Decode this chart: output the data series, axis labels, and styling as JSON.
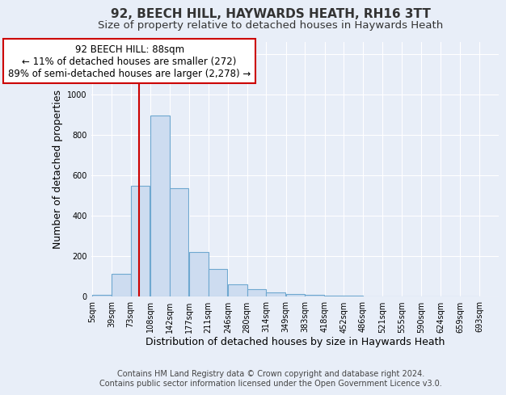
{
  "title": "92, BEECH HILL, HAYWARDS HEATH, RH16 3TT",
  "subtitle": "Size of property relative to detached houses in Haywards Heath",
  "xlabel": "Distribution of detached houses by size in Haywards Heath",
  "ylabel": "Number of detached properties",
  "footer_line1": "Contains HM Land Registry data © Crown copyright and database right 2024.",
  "footer_line2": "Contains public sector information licensed under the Open Government Licence v3.0.",
  "bin_labels": [
    "5sqm",
    "39sqm",
    "73sqm",
    "108sqm",
    "142sqm",
    "177sqm",
    "211sqm",
    "246sqm",
    "280sqm",
    "314sqm",
    "349sqm",
    "383sqm",
    "418sqm",
    "452sqm",
    "486sqm",
    "521sqm",
    "555sqm",
    "590sqm",
    "624sqm",
    "659sqm",
    "693sqm"
  ],
  "bin_edges": [
    5,
    39,
    73,
    108,
    142,
    177,
    211,
    246,
    280,
    314,
    349,
    383,
    418,
    452,
    486,
    521,
    555,
    590,
    624,
    659,
    693
  ],
  "bar_heights": [
    5,
    110,
    545,
    895,
    535,
    220,
    135,
    60,
    35,
    20,
    10,
    5,
    2,
    1,
    0,
    0,
    0,
    0,
    0,
    0
  ],
  "bar_color": "#cddcf0",
  "bar_edge_color": "#6fa8d0",
  "vline_x": 88,
  "vline_color": "#cc0000",
  "annotation_text": "92 BEECH HILL: 88sqm\n← 11% of detached houses are smaller (272)\n89% of semi-detached houses are larger (2,278) →",
  "annotation_box_edgecolor": "#cc0000",
  "ylim": [
    0,
    1260
  ],
  "yticks": [
    0,
    200,
    400,
    600,
    800,
    1000,
    1200
  ],
  "background_color": "#e8eef8",
  "grid_color": "#ffffff",
  "title_fontsize": 11,
  "subtitle_fontsize": 9.5,
  "label_fontsize": 9,
  "tick_fontsize": 7,
  "footer_fontsize": 7,
  "annot_fontsize": 8.5
}
